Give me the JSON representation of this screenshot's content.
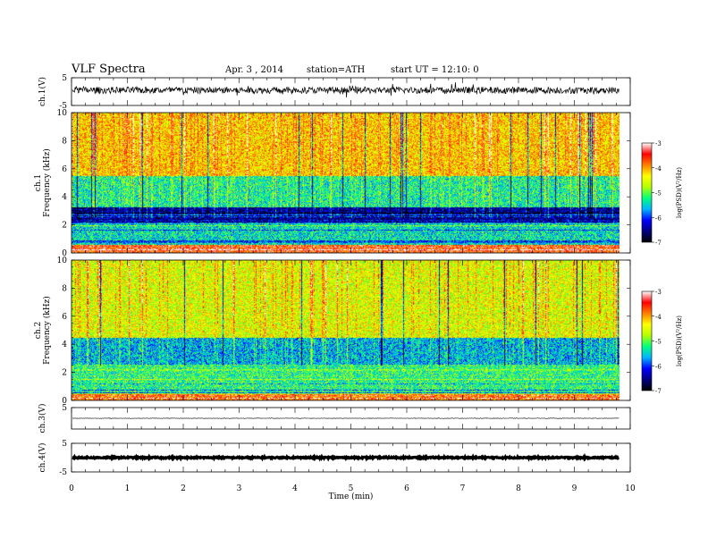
{
  "header": {
    "title": "VLF Spectra",
    "date": "Apr. 3 , 2014",
    "station": "station=ATH",
    "start": "start UT = 12:10: 0"
  },
  "colors": {
    "colormap": [
      "#000000",
      "#00007f",
      "#0000ff",
      "#00b4ff",
      "#00ff80",
      "#b4ff00",
      "#ffff00",
      "#ff7f00",
      "#ff0000",
      "#ffffff"
    ],
    "trace": "#000000",
    "axes": "#000000"
  },
  "chart_data": [
    {
      "type": "line",
      "panel": "ch1-waveform",
      "ylabel": "ch.1(V)",
      "ylim": [
        -5,
        5
      ],
      "yticks": [
        "5",
        "-5"
      ],
      "xlim": [
        0,
        10
      ],
      "description_values": {
        "mean": 0.5,
        "typical_range": [
          -1.5,
          2.5
        ]
      }
    },
    {
      "type": "heatmap",
      "panel": "ch1-spectrogram",
      "ylabel": "ch.1\nFrequency (kHz)",
      "ylim": [
        0,
        10
      ],
      "yticks": [
        "0",
        "2",
        "4",
        "6",
        "8",
        "10"
      ],
      "xlim": [
        0,
        10
      ],
      "data_end_min": 9.8,
      "colorbar": {
        "label": "log(PSD)(V²/Hz)",
        "range": [
          -7,
          -3
        ],
        "ticks": [
          "-3",
          "-4",
          "-5",
          "-6",
          "-7"
        ]
      },
      "band_levels_by_kHz": [
        {
          "from": 0,
          "to": 0.6,
          "level": -3.6
        },
        {
          "from": 0.6,
          "to": 2.2,
          "level": -5.4
        },
        {
          "from": 2.2,
          "to": 3.3,
          "level": -6.5
        },
        {
          "from": 3.3,
          "to": 5.5,
          "level": -5.3
        },
        {
          "from": 5.5,
          "to": 10,
          "level": -4.2
        }
      ]
    },
    {
      "type": "heatmap",
      "panel": "ch2-spectrogram",
      "ylabel": "ch.2\nFrequency (kHz)",
      "ylim": [
        0,
        10
      ],
      "yticks": [
        "0",
        "2",
        "4",
        "6",
        "8",
        "10"
      ],
      "xlim": [
        0,
        10
      ],
      "data_end_min": 9.8,
      "colorbar": {
        "label": "log(PSD)(V²/Hz)",
        "range": [
          -7,
          -3
        ],
        "ticks": [
          "-3",
          "-4",
          "-5",
          "-6",
          "-7"
        ]
      },
      "band_levels_by_kHz": [
        {
          "from": 0,
          "to": 0.5,
          "level": -3.8
        },
        {
          "from": 0.5,
          "to": 2.5,
          "level": -5.2
        },
        {
          "from": 2.5,
          "to": 4.5,
          "level": -5.6
        },
        {
          "from": 4.5,
          "to": 10,
          "level": -4.5
        }
      ]
    },
    {
      "type": "line",
      "panel": "ch3-waveform",
      "ylabel": "ch.3(V)",
      "ylim": [
        -5,
        5
      ],
      "yticks": [
        "5"
      ],
      "xlim": [
        0,
        10
      ],
      "description_values": {
        "mean": 0,
        "typical_range": [
          -0.2,
          0.2
        ]
      }
    },
    {
      "type": "line",
      "panel": "ch4-waveform",
      "ylabel": "ch.4(V)",
      "ylim": [
        -5,
        5
      ],
      "yticks": [
        "5",
        "-5"
      ],
      "xlim": [
        0,
        10
      ],
      "xlabel": "Time (min)",
      "xticks": [
        "0",
        "1",
        "2",
        "3",
        "4",
        "5",
        "6",
        "7",
        "8",
        "9",
        "10"
      ],
      "description_values": {
        "mean": 0,
        "typical_range": [
          -0.4,
          0.4
        ]
      }
    }
  ]
}
